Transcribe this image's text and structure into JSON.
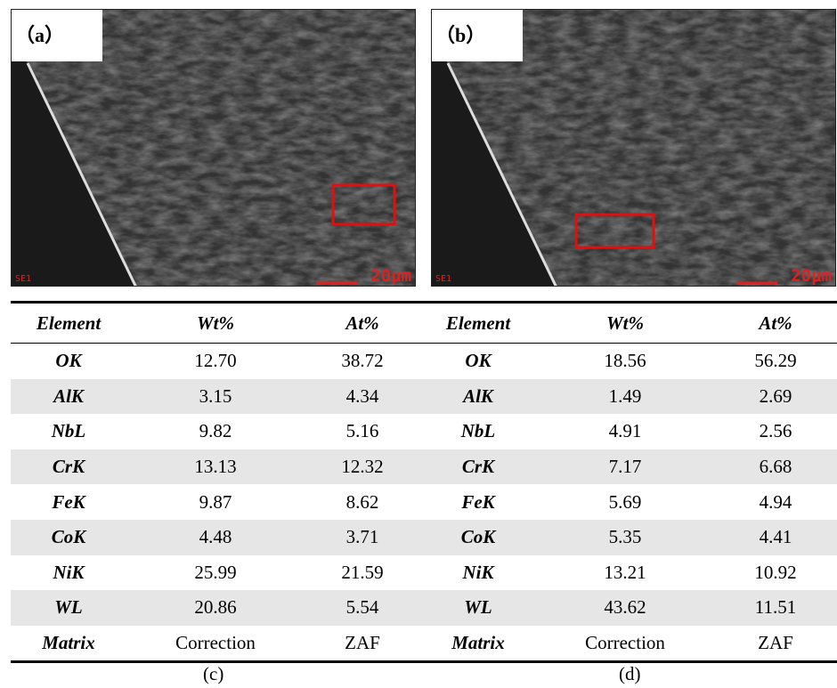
{
  "panels": [
    {
      "label": "（a）",
      "detector": "SE1",
      "scale": "20μm"
    },
    {
      "label": "（b）",
      "detector": "SE1",
      "scale": "20μm"
    }
  ],
  "table": {
    "header": [
      "Element",
      "Wt%",
      "At%",
      "Element",
      "Wt%",
      "At%"
    ],
    "rows": [
      [
        "OK",
        "12.70",
        "38.72",
        "OK",
        "18.56",
        "56.29"
      ],
      [
        "AlK",
        "3.15",
        "4.34",
        "AlK",
        "1.49",
        "2.69"
      ],
      [
        "NbL",
        "9.82",
        "5.16",
        "NbL",
        "4.91",
        "2.56"
      ],
      [
        "CrK",
        "13.13",
        "12.32",
        "CrK",
        "7.17",
        "6.68"
      ],
      [
        "FeK",
        "9.87",
        "8.62",
        "FeK",
        "5.69",
        "4.94"
      ],
      [
        "CoK",
        "4.48",
        "3.71",
        "CoK",
        "5.35",
        "4.41"
      ],
      [
        "NiK",
        "25.99",
        "21.59",
        "NiK",
        "13.21",
        "10.92"
      ],
      [
        "WL",
        "20.86",
        "5.54",
        "WL",
        "43.62",
        "11.51"
      ],
      [
        "Matrix",
        "Correction",
        "ZAF",
        "Matrix",
        "Correction",
        "ZAF"
      ]
    ]
  },
  "captions": [
    "(c)",
    "(d)"
  ]
}
